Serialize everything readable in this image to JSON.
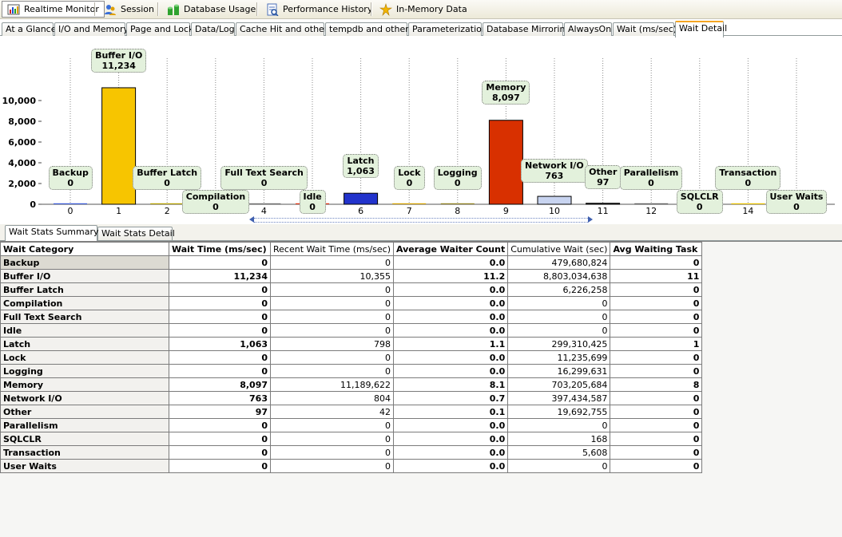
{
  "toolbar": [
    {
      "label": "Realtime Monitor",
      "icon": "realtime-monitor-icon"
    },
    {
      "label": "Session",
      "icon": "session-icon"
    },
    {
      "label": "Database Usage",
      "icon": "database-usage-icon"
    },
    {
      "label": "Performance History",
      "icon": "performance-history-icon"
    },
    {
      "label": "In-Memory Data",
      "icon": "in-memory-data-icon"
    }
  ],
  "tabs": [
    "At a Glance",
    "I/O and Memory",
    "Page and Lock",
    "Data/Log",
    "Cache Hit and others",
    "tempdb and others",
    "Parameterization",
    "Database Mirroring",
    "AlwaysOn",
    "Wait (ms/sec)",
    "Wait Detail"
  ],
  "active_tab": "Wait Detail",
  "subtabs": [
    "Wait Stats Summary",
    "Wait Stats Detail"
  ],
  "active_subtab": "Wait Stats Summary",
  "chart_data": {
    "type": "bar",
    "x": [
      0,
      1,
      2,
      3,
      4,
      5,
      6,
      7,
      8,
      9,
      10,
      11,
      12,
      13,
      14,
      15
    ],
    "categories": [
      "Backup",
      "Buffer I/O",
      "Buffer Latch",
      "Compilation",
      "Full Text Search",
      "Idle",
      "Latch",
      "Lock",
      "Logging",
      "Memory",
      "Network I/O",
      "Other",
      "Parallelism",
      "SQLCLR",
      "Transaction",
      "User Waits"
    ],
    "values": [
      0,
      11234,
      0,
      0,
      0,
      0,
      1063,
      0,
      0,
      8097,
      763,
      97,
      0,
      0,
      0,
      0
    ],
    "value_labels": [
      "0",
      "11,234",
      "0",
      "0",
      "0",
      "0",
      "1,063",
      "0",
      "0",
      "8,097",
      "763",
      "97",
      "0",
      "0",
      "0",
      "0"
    ],
    "colors": [
      "#3b5bd6",
      "#f7c500",
      "#b5a100",
      "#c8a000",
      "#707070",
      "#e03010",
      "#2233cc",
      "#d4a000",
      "#908020",
      "#d83000",
      "#c8d4f0",
      "#202020",
      "#606060",
      "#808080",
      "#e8c000",
      "#c0c0c0"
    ],
    "yticks": [
      0,
      2000,
      4000,
      6000,
      8000,
      10000
    ],
    "ytick_labels": [
      "0",
      "2,000",
      "4,000",
      "6,000",
      "8,000",
      "10,000"
    ],
    "ylim": [
      0,
      13500
    ],
    "grid": "vertical dotted",
    "title": "",
    "xlabel": "",
    "ylabel": ""
  },
  "table": {
    "columns": [
      "Wait Category",
      "Wait Time (ms/sec)",
      "Recent Wait Time (ms/sec)",
      "Average Waiter Count",
      "Cumulative Wait (sec)",
      "Avg Waiting Task"
    ],
    "rows": [
      [
        "Backup",
        "0",
        "0",
        "0.0",
        "479,680,824",
        "0"
      ],
      [
        "Buffer I/O",
        "11,234",
        "10,355",
        "11.2",
        "8,803,034,638",
        "11"
      ],
      [
        "Buffer Latch",
        "0",
        "0",
        "0.0",
        "6,226,258",
        "0"
      ],
      [
        "Compilation",
        "0",
        "0",
        "0.0",
        "0",
        "0"
      ],
      [
        "Full Text Search",
        "0",
        "0",
        "0.0",
        "0",
        "0"
      ],
      [
        "Idle",
        "0",
        "0",
        "0.0",
        "0",
        "0"
      ],
      [
        "Latch",
        "1,063",
        "798",
        "1.1",
        "299,310,425",
        "1"
      ],
      [
        "Lock",
        "0",
        "0",
        "0.0",
        "11,235,699",
        "0"
      ],
      [
        "Logging",
        "0",
        "0",
        "0.0",
        "16,299,631",
        "0"
      ],
      [
        "Memory",
        "8,097",
        "11,189,622",
        "8.1",
        "703,205,684",
        "8"
      ],
      [
        "Network I/O",
        "763",
        "804",
        "0.7",
        "397,434,587",
        "0"
      ],
      [
        "Other",
        "97",
        "42",
        "0.1",
        "19,692,755",
        "0"
      ],
      [
        "Parallelism",
        "0",
        "0",
        "0.0",
        "0",
        "0"
      ],
      [
        "SQLCLR",
        "0",
        "0",
        "0.0",
        "168",
        "0"
      ],
      [
        "Transaction",
        "0",
        "0",
        "0.0",
        "5,608",
        "0"
      ],
      [
        "User Waits",
        "0",
        "0",
        "0.0",
        "0",
        "0"
      ]
    ]
  }
}
